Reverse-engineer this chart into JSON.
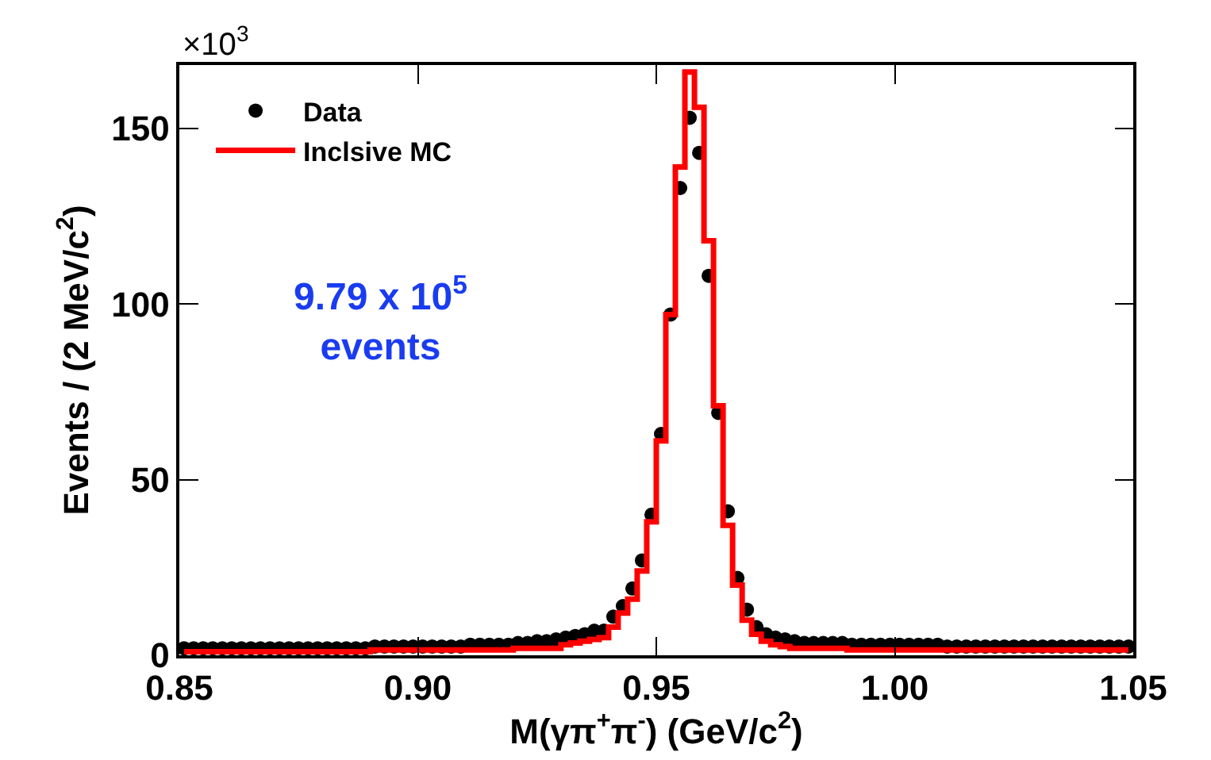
{
  "chart_data": {
    "type": "scatter",
    "xlabel": "M(γπ$^{+}$π$^{-}$) (GeV/c$^{2}$)",
    "ylabel": "Events / (2 MeV/c$^{2}$)",
    "annotations": [
      "×10$^{3}$",
      "9.79 x 10$^{5}$\nevents"
    ],
    "x": [
      0.851,
      0.853,
      0.855,
      0.857,
      0.859,
      0.861,
      0.863,
      0.865,
      0.867,
      0.869,
      0.871,
      0.873,
      0.875,
      0.877,
      0.879,
      0.881,
      0.883,
      0.885,
      0.887,
      0.889,
      0.891,
      0.893,
      0.895,
      0.897,
      0.899,
      0.901,
      0.903,
      0.905,
      0.907,
      0.909,
      0.911,
      0.913,
      0.915,
      0.917,
      0.919,
      0.921,
      0.923,
      0.925,
      0.927,
      0.929,
      0.931,
      0.933,
      0.935,
      0.937,
      0.939,
      0.941,
      0.943,
      0.945,
      0.947,
      0.949,
      0.951,
      0.953,
      0.955,
      0.957,
      0.959,
      0.961,
      0.963,
      0.965,
      0.967,
      0.969,
      0.971,
      0.973,
      0.975,
      0.977,
      0.979,
      0.981,
      0.983,
      0.985,
      0.987,
      0.989,
      0.991,
      0.993,
      0.995,
      0.997,
      0.999,
      1.001,
      1.003,
      1.005,
      1.007,
      1.009,
      1.011,
      1.013,
      1.015,
      1.017,
      1.019,
      1.021,
      1.023,
      1.025,
      1.027,
      1.029,
      1.031,
      1.033,
      1.035,
      1.037,
      1.039,
      1.041,
      1.043,
      1.045,
      1.047,
      1.049
    ],
    "series": [
      {
        "name": "Data",
        "color": "#000000",
        "marker": "circle",
        "values": [
          2,
          2,
          2,
          2,
          2,
          2,
          2,
          2,
          2,
          2,
          2,
          2,
          2,
          2,
          2,
          2,
          2,
          2,
          2,
          2,
          2.5,
          2.5,
          2.5,
          2.5,
          2.5,
          2.5,
          2.5,
          2.5,
          2.5,
          2.5,
          3,
          3,
          3,
          3,
          3,
          3.5,
          3.5,
          4,
          4,
          4.5,
          5,
          5.5,
          6,
          7,
          7,
          11,
          14,
          19,
          27,
          40,
          63,
          97,
          133,
          153,
          143,
          108,
          69,
          41,
          22,
          13,
          8,
          6,
          5,
          4.5,
          4,
          3.5,
          3.5,
          3.5,
          3.5,
          3.5,
          3,
          3,
          3,
          3,
          3,
          3,
          3,
          3,
          3,
          3,
          2.5,
          2.5,
          2.5,
          2.5,
          2.5,
          2.5,
          2.5,
          2.5,
          2.5,
          2.5,
          2.5,
          2.5,
          2.5,
          2.5,
          2.5,
          2.5,
          2.5,
          2.5,
          2.5,
          2.5
        ]
      },
      {
        "name": "Inclsive MC",
        "type": "step",
        "color": "#ff0000",
        "values": [
          1,
          1,
          1,
          1,
          1,
          1,
          1,
          1,
          1,
          1,
          1,
          1,
          1,
          1,
          1,
          1,
          1,
          1,
          1,
          1,
          1.5,
          1.5,
          1.5,
          1.5,
          1.5,
          1.5,
          1.5,
          1.5,
          1.5,
          1.5,
          1.5,
          1.5,
          1.5,
          1.5,
          1.5,
          2,
          2,
          2,
          2,
          2,
          3,
          3.5,
          4,
          4.5,
          5,
          8,
          12,
          16,
          24,
          38,
          61,
          97,
          139,
          166,
          156,
          118,
          71,
          37,
          20,
          10,
          6,
          4,
          3,
          2.5,
          2,
          2,
          2,
          2,
          2,
          2,
          1.5,
          1.5,
          1.5,
          1.5,
          1.5,
          1.5,
          1.5,
          1.5,
          1.5,
          1.5,
          1.5,
          1.5,
          1.5,
          1.5,
          1.5,
          1.5,
          1.5,
          1.5,
          1.5,
          1.5,
          1.5,
          1.5,
          1.5,
          1.5,
          1.5,
          1.5,
          1.5,
          1.5,
          1.5,
          1.5
        ]
      }
    ],
    "xlim": [
      0.85,
      1.05
    ],
    "ylim": [
      0,
      168
    ],
    "xticks": [
      {
        "value": 0.85,
        "label": "0.85"
      },
      {
        "value": 0.9,
        "label": "0.90"
      },
      {
        "value": 0.95,
        "label": "0.95"
      },
      {
        "value": 1.0,
        "label": "1.00"
      },
      {
        "value": 1.05,
        "label": "1.05"
      }
    ],
    "yticks": [
      0,
      50,
      100,
      150
    ],
    "grid": false,
    "legend": "top left"
  }
}
